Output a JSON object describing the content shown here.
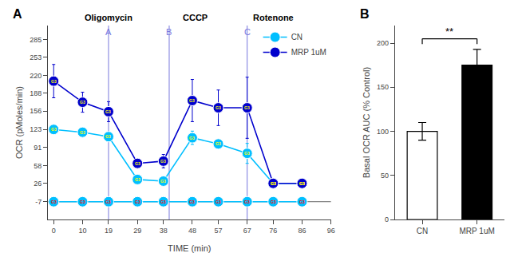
{
  "chart_data": [
    {
      "type": "line",
      "title": "A",
      "xlabel": "TIME (min)",
      "ylabel": "OCR (pMoles/min)",
      "xlim": [
        -2,
        96
      ],
      "ylim": [
        -39,
        310
      ],
      "xticks": [
        0,
        10,
        19,
        29,
        38,
        48,
        57,
        67,
        76,
        86,
        96
      ],
      "yticks": [
        -7,
        26,
        58,
        91,
        123,
        156,
        188,
        220,
        253,
        285
      ],
      "grid": false,
      "legend": "upper right",
      "series": [
        {
          "color": "#00BFFF",
          "x": [
            0,
            10,
            19,
            29,
            38,
            48,
            57,
            67,
            76,
            86
          ],
          "values": [
            -7,
            -7,
            -7,
            -7,
            -7,
            -7,
            -7,
            -7,
            -7,
            -7
          ],
          "errors": [
            1,
            1,
            1,
            1,
            1,
            1,
            1,
            1,
            1,
            1
          ]
        },
        {
          "name": "CN",
          "color": "#00BFFF",
          "x": [
            0,
            10,
            19,
            29,
            38,
            48,
            57,
            67,
            76,
            86
          ],
          "values": [
            123,
            118,
            110,
            33,
            30,
            108,
            97,
            80,
            26,
            26
          ],
          "errors": [
            6,
            5,
            8,
            4,
            3,
            12,
            8,
            18,
            4,
            4
          ]
        },
        {
          "name": "MRP 1uM",
          "color": "#0000CD",
          "x": [
            0,
            10,
            19,
            29,
            38,
            48,
            57,
            67,
            76,
            86
          ],
          "values": [
            210,
            172,
            155,
            62,
            66,
            175,
            162,
            162,
            26,
            26
          ],
          "errors": [
            30,
            18,
            18,
            8,
            12,
            38,
            32,
            55,
            7,
            7
          ]
        }
      ],
      "hline": {
        "y": -7,
        "color": "#666666"
      },
      "vlines": [
        {
          "x": 19,
          "label": "A",
          "color": "#7777DD"
        },
        {
          "x": 40,
          "label": "B",
          "color": "#7777DD"
        },
        {
          "x": 67,
          "label": "C",
          "color": "#7777DD"
        }
      ],
      "annotations": [
        {
          "text": "Oligomycin",
          "x": 19
        },
        {
          "text": "CCCP",
          "x": 49
        },
        {
          "text": "Rotenone",
          "x": 76
        },
        {
          "text": "G3",
          "x": 0,
          "y": -7,
          "color": "red"
        },
        {
          "text": "G3",
          "x": 10,
          "y": -7,
          "color": "red"
        },
        {
          "text": "G3",
          "x": 19,
          "y": -7,
          "color": "red"
        },
        {
          "text": "G3",
          "x": 29,
          "y": -7,
          "color": "red"
        },
        {
          "text": "G3",
          "x": 38,
          "y": -7,
          "color": "red"
        },
        {
          "text": "G3",
          "x": 48,
          "y": -7,
          "color": "red"
        },
        {
          "text": "G3",
          "x": 57,
          "y": -7,
          "color": "red"
        },
        {
          "text": "G3",
          "x": 67,
          "y": -7,
          "color": "red"
        },
        {
          "text": "G3",
          "x": 76,
          "y": -7,
          "color": "red"
        },
        {
          "text": "G3",
          "x": 86,
          "y": -7,
          "color": "red"
        },
        {
          "text": "G3",
          "x": 0,
          "y": 123,
          "color": "yellow"
        },
        {
          "text": "G3",
          "x": 10,
          "y": 118,
          "color": "yellow"
        },
        {
          "text": "G3",
          "x": 19,
          "y": 110,
          "color": "yellow"
        },
        {
          "text": "G3",
          "x": 29,
          "y": 33,
          "color": "yellow"
        },
        {
          "text": "G3",
          "x": 38,
          "y": 30,
          "color": "yellow"
        },
        {
          "text": "G3",
          "x": 48,
          "y": 108,
          "color": "yellow"
        },
        {
          "text": "G3",
          "x": 57,
          "y": 97,
          "color": "yellow"
        },
        {
          "text": "G3",
          "x": 67,
          "y": 80,
          "color": "yellow"
        },
        {
          "text": "G3",
          "x": 76,
          "y": 26,
          "color": "yellow"
        },
        {
          "text": "G3",
          "x": 86,
          "y": 26,
          "color": "yellow"
        },
        {
          "text": "G3",
          "x": 0,
          "y": 210,
          "color": "yellow"
        },
        {
          "text": "G3",
          "x": 10,
          "y": 172,
          "color": "yellow"
        },
        {
          "text": "G3",
          "x": 19,
          "y": 155,
          "color": "yellow"
        },
        {
          "text": "G3",
          "x": 29,
          "y": 62,
          "color": "yellow"
        },
        {
          "text": "G3",
          "x": 38,
          "y": 66,
          "color": "yellow"
        },
        {
          "text": "G3",
          "x": 48,
          "y": 175,
          "color": "yellow"
        },
        {
          "text": "G3",
          "x": 57,
          "y": 162,
          "color": "yellow"
        },
        {
          "text": "G3",
          "x": 67,
          "y": 162,
          "color": "yellow"
        },
        {
          "text": "G3",
          "x": 76,
          "y": 26,
          "color": "yellow"
        },
        {
          "text": "G3",
          "x": 86,
          "y": 26,
          "color": "yellow"
        }
      ]
    },
    {
      "type": "bar",
      "title": "B",
      "ylabel": "Basal OCR AUC (% Control)",
      "categories": [
        "CN",
        "MRP 1uM"
      ],
      "values": [
        100,
        175
      ],
      "errors": [
        10,
        18
      ],
      "colors": [
        "white",
        "black"
      ],
      "edge_color": "black",
      "ylim": [
        0,
        220
      ],
      "yticks": [
        0,
        50,
        100,
        150,
        200
      ],
      "grid": false,
      "significance": {
        "text": "**",
        "y": 205,
        "tick": 6
      }
    }
  ]
}
